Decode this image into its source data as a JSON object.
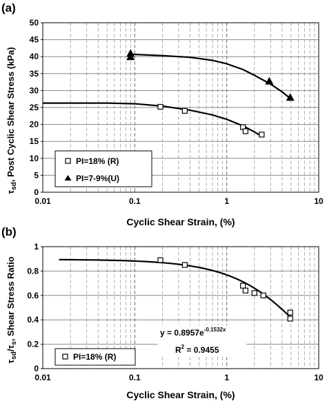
{
  "chart_data": [
    {
      "panel": "(a)",
      "type": "scatter",
      "x_scale": "log",
      "xlim": [
        0.01,
        10
      ],
      "ylim": [
        0,
        50
      ],
      "x_ticks": [
        "0.01",
        "0.1",
        "1",
        "10"
      ],
      "y_ticks": [
        "0",
        "5",
        "10",
        "15",
        "20",
        "25",
        "30",
        "35",
        "40",
        "45",
        "50"
      ],
      "xlabel": "Cyclic Shear Strain, (%)",
      "ylabel_symbol": "τ",
      "ylabel_sub": "sd",
      "ylabel_rest": ", Post Cyclic Shear Stress (kPa)",
      "grid": "major horizontal, log vertical dashed",
      "legend": "bottom-left",
      "series": [
        {
          "name": "PI=18% (R)",
          "marker": "square-open",
          "points": [
            [
              0.19,
              25.2
            ],
            [
              0.35,
              24.0
            ],
            [
              1.5,
              19.2
            ],
            [
              1.6,
              18.0
            ],
            [
              2.4,
              17.0
            ]
          ],
          "trend": [
            [
              0.01,
              26.3
            ],
            [
              0.05,
              26.3
            ],
            [
              0.1,
              26.1
            ],
            [
              0.2,
              25.4
            ],
            [
              0.4,
              24.2
            ],
            [
              0.7,
              22.8
            ],
            [
              1.0,
              21.5
            ],
            [
              1.5,
              19.6
            ],
            [
              2.0,
              17.8
            ],
            [
              2.4,
              16.5
            ]
          ]
        },
        {
          "name": "PI=7-9%(U)",
          "marker": "triangle-filled",
          "points": [
            [
              0.09,
              41.0
            ],
            [
              0.09,
              40.0
            ],
            [
              2.9,
              32.8
            ],
            [
              4.9,
              28.0
            ]
          ],
          "trend": [
            [
              0.09,
              40.7
            ],
            [
              0.2,
              40.3
            ],
            [
              0.4,
              39.8
            ],
            [
              0.7,
              38.9
            ],
            [
              1.0,
              37.9
            ],
            [
              1.5,
              36.2
            ],
            [
              2.0,
              34.5
            ],
            [
              3.0,
              31.9
            ],
            [
              4.0,
              29.6
            ],
            [
              4.9,
              27.7
            ]
          ]
        }
      ]
    },
    {
      "panel": "(b)",
      "type": "scatter",
      "x_scale": "log",
      "xlim": [
        0.01,
        10
      ],
      "ylim": [
        0,
        1
      ],
      "x_ticks": [
        "0.01",
        "0.1",
        "1",
        "10"
      ],
      "y_ticks": [
        "0",
        "0.2",
        "0.4",
        "0.6",
        "0.8",
        "1"
      ],
      "xlabel": "Cyclic Shear Strain, (%)",
      "ylabel_symbol": "τ",
      "ylabel_sub": "sd",
      "ylabel_slash": "/τ",
      "ylabel_sub2": "s",
      "ylabel_rest": ", Shear Stress Ratio",
      "grid": "major horizontal, log vertical dashed",
      "legend": "bottom-left",
      "annotation_eq_main": "y = 0.8957e",
      "annotation_eq_exp": "-0.1532x",
      "annotation_r2_a": "R",
      "annotation_r2_sup": "2",
      "annotation_r2_b": " = 0.9455",
      "series": [
        {
          "name": "PI=18% (R)",
          "marker": "square-open",
          "points": [
            [
              0.19,
              0.89
            ],
            [
              0.35,
              0.85
            ],
            [
              1.5,
              0.68
            ],
            [
              1.6,
              0.64
            ],
            [
              2.0,
              0.62
            ],
            [
              2.5,
              0.6
            ],
            [
              4.9,
              0.46
            ],
            [
              4.9,
              0.41
            ]
          ],
          "fit": {
            "type": "exponential",
            "a": 0.8957,
            "b": -0.1532,
            "x_range": [
              0.015,
              4.9
            ]
          }
        }
      ]
    }
  ]
}
